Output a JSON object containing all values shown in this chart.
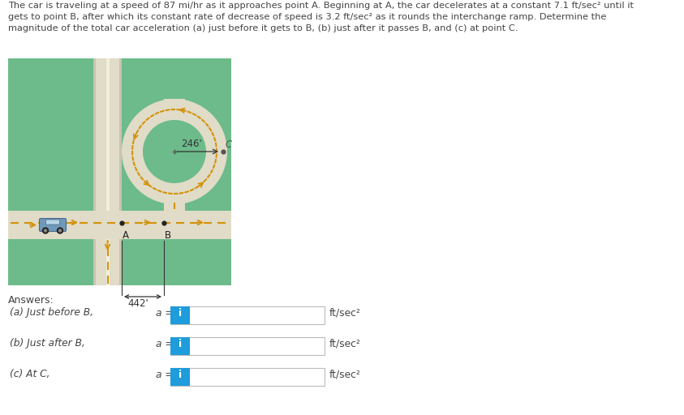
{
  "bg_color": "#ffffff",
  "green_color": "#6dbb8a",
  "road_color": "#e0dcc8",
  "road_light": "#ece8d8",
  "arrow_color": "#d4920a",
  "dashed_color": "#d4920a",
  "text_color": "#444444",
  "blue_btn_color": "#1e9cdb",
  "title_text_line1": "The car is traveling at a speed of 87 mi/hr as it approaches point A. Beginning at A, the car decelerates at a constant 7.1 ft/sec² until it",
  "title_text_line2": "gets to point B, after which its constant rate of decrease of speed is 3.2 ft/sec² as it rounds the interchange ramp. Determine the",
  "title_text_line3": "magnitude of the total car acceleration (a) just before it gets to B, (b) just after it passes B, and (c) at point C.",
  "answers_label": "Answers:",
  "answer_a_label": "(a) Just before B,",
  "answer_b_label": "(b) Just after B,",
  "answer_c_label": "(c) At C,",
  "unit": "ft/sec²",
  "dist_442": "442'",
  "dist_246": "246'",
  "point_A": "A",
  "point_B": "B",
  "point_C": "C"
}
